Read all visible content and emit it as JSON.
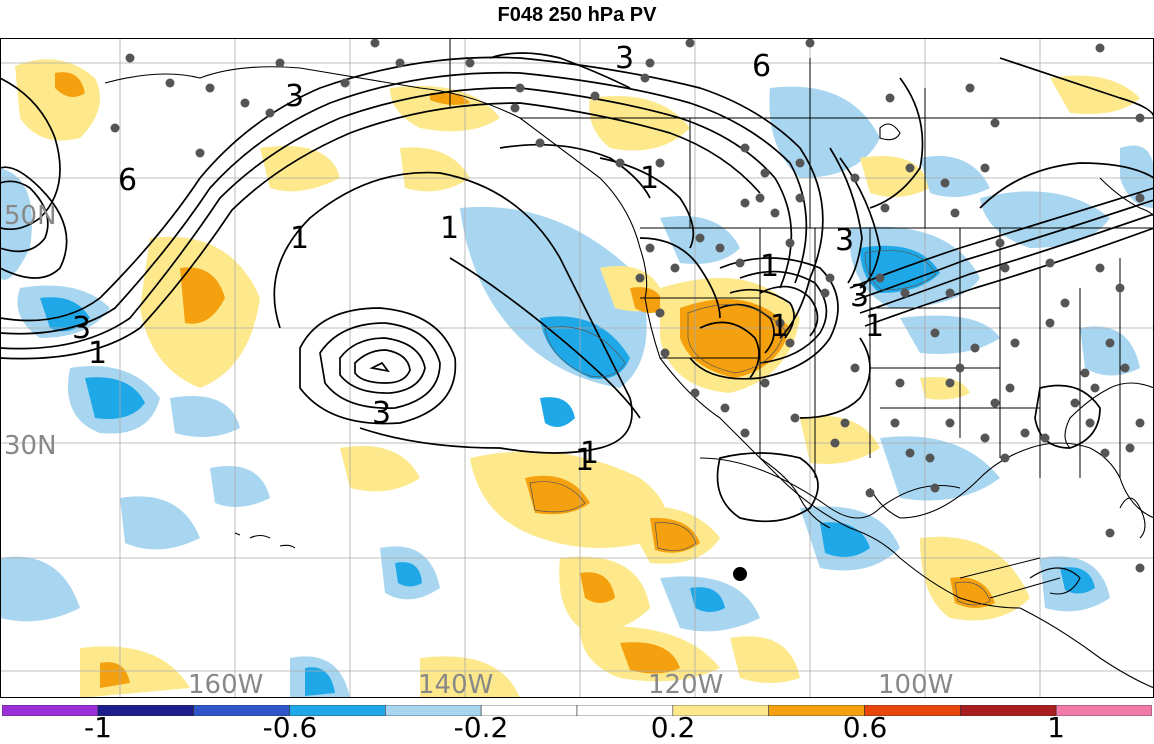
{
  "title": "F048 250 hPa PV",
  "map": {
    "lat_labels": [
      "50N",
      "30N"
    ],
    "lon_labels": [
      "160W",
      "140W",
      "120W",
      "100W"
    ],
    "contour_labels": [
      "3",
      "6",
      "6",
      "3",
      "1",
      "1",
      "3",
      "1",
      "1",
      "3",
      "1",
      "1",
      "3",
      "1",
      "1",
      "3",
      "1"
    ]
  },
  "colorbar": {
    "colors": [
      "#9b30d9",
      "#1c1c8c",
      "#2e56c8",
      "#1fa8e8",
      "#a8d6f0",
      "#ffffff",
      "#ffffff",
      "#fde98c",
      "#f5a00e",
      "#e8460a",
      "#a81e1e",
      "#f27aa8"
    ],
    "tick_labels": [
      "-1",
      "-0.6",
      "-0.2",
      "0.2",
      "0.6",
      "1"
    ]
  }
}
